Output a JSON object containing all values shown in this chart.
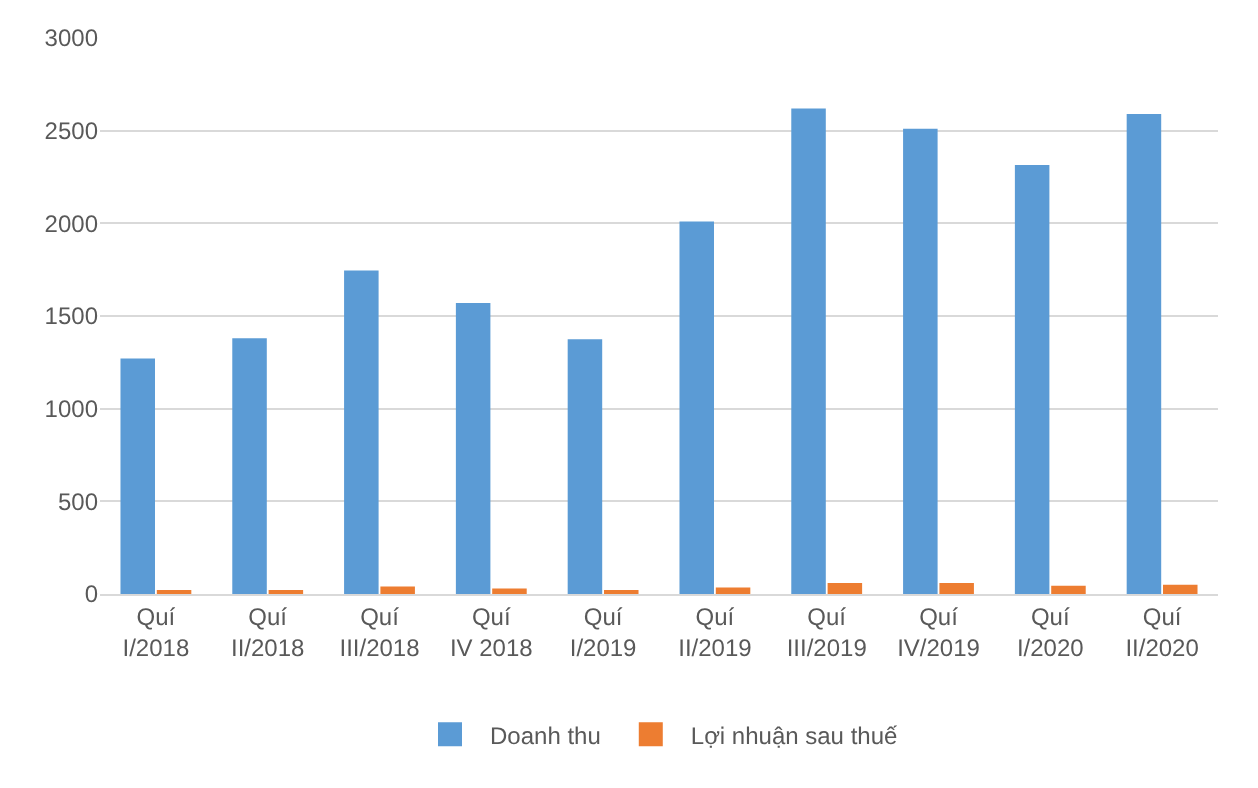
{
  "chart_data": {
    "type": "bar",
    "categories": [
      "Quí I/2018",
      "Quí II/2018",
      "Quí III/2018",
      "Quí IV 2018",
      "Quí I/2019",
      "Quí II/2019",
      "Quí III/2019",
      "Quí IV/2019",
      "Quí I/2020",
      "Quí II/2020"
    ],
    "series": [
      {
        "name": "Doanh thu",
        "color": "#5b9bd5",
        "values": [
          1270,
          1380,
          1745,
          1570,
          1375,
          2010,
          2620,
          2510,
          2315,
          2590
        ]
      },
      {
        "name": "Lợi nhuận sau thuế",
        "color": "#ed7d31",
        "values": [
          20,
          20,
          40,
          30,
          20,
          35,
          60,
          60,
          45,
          50
        ]
      }
    ],
    "ylim": [
      0,
      3000
    ],
    "yticks": [
      0,
      500,
      1000,
      1500,
      2000,
      2500,
      3000
    ],
    "grid": "y",
    "legend": "bottom"
  }
}
